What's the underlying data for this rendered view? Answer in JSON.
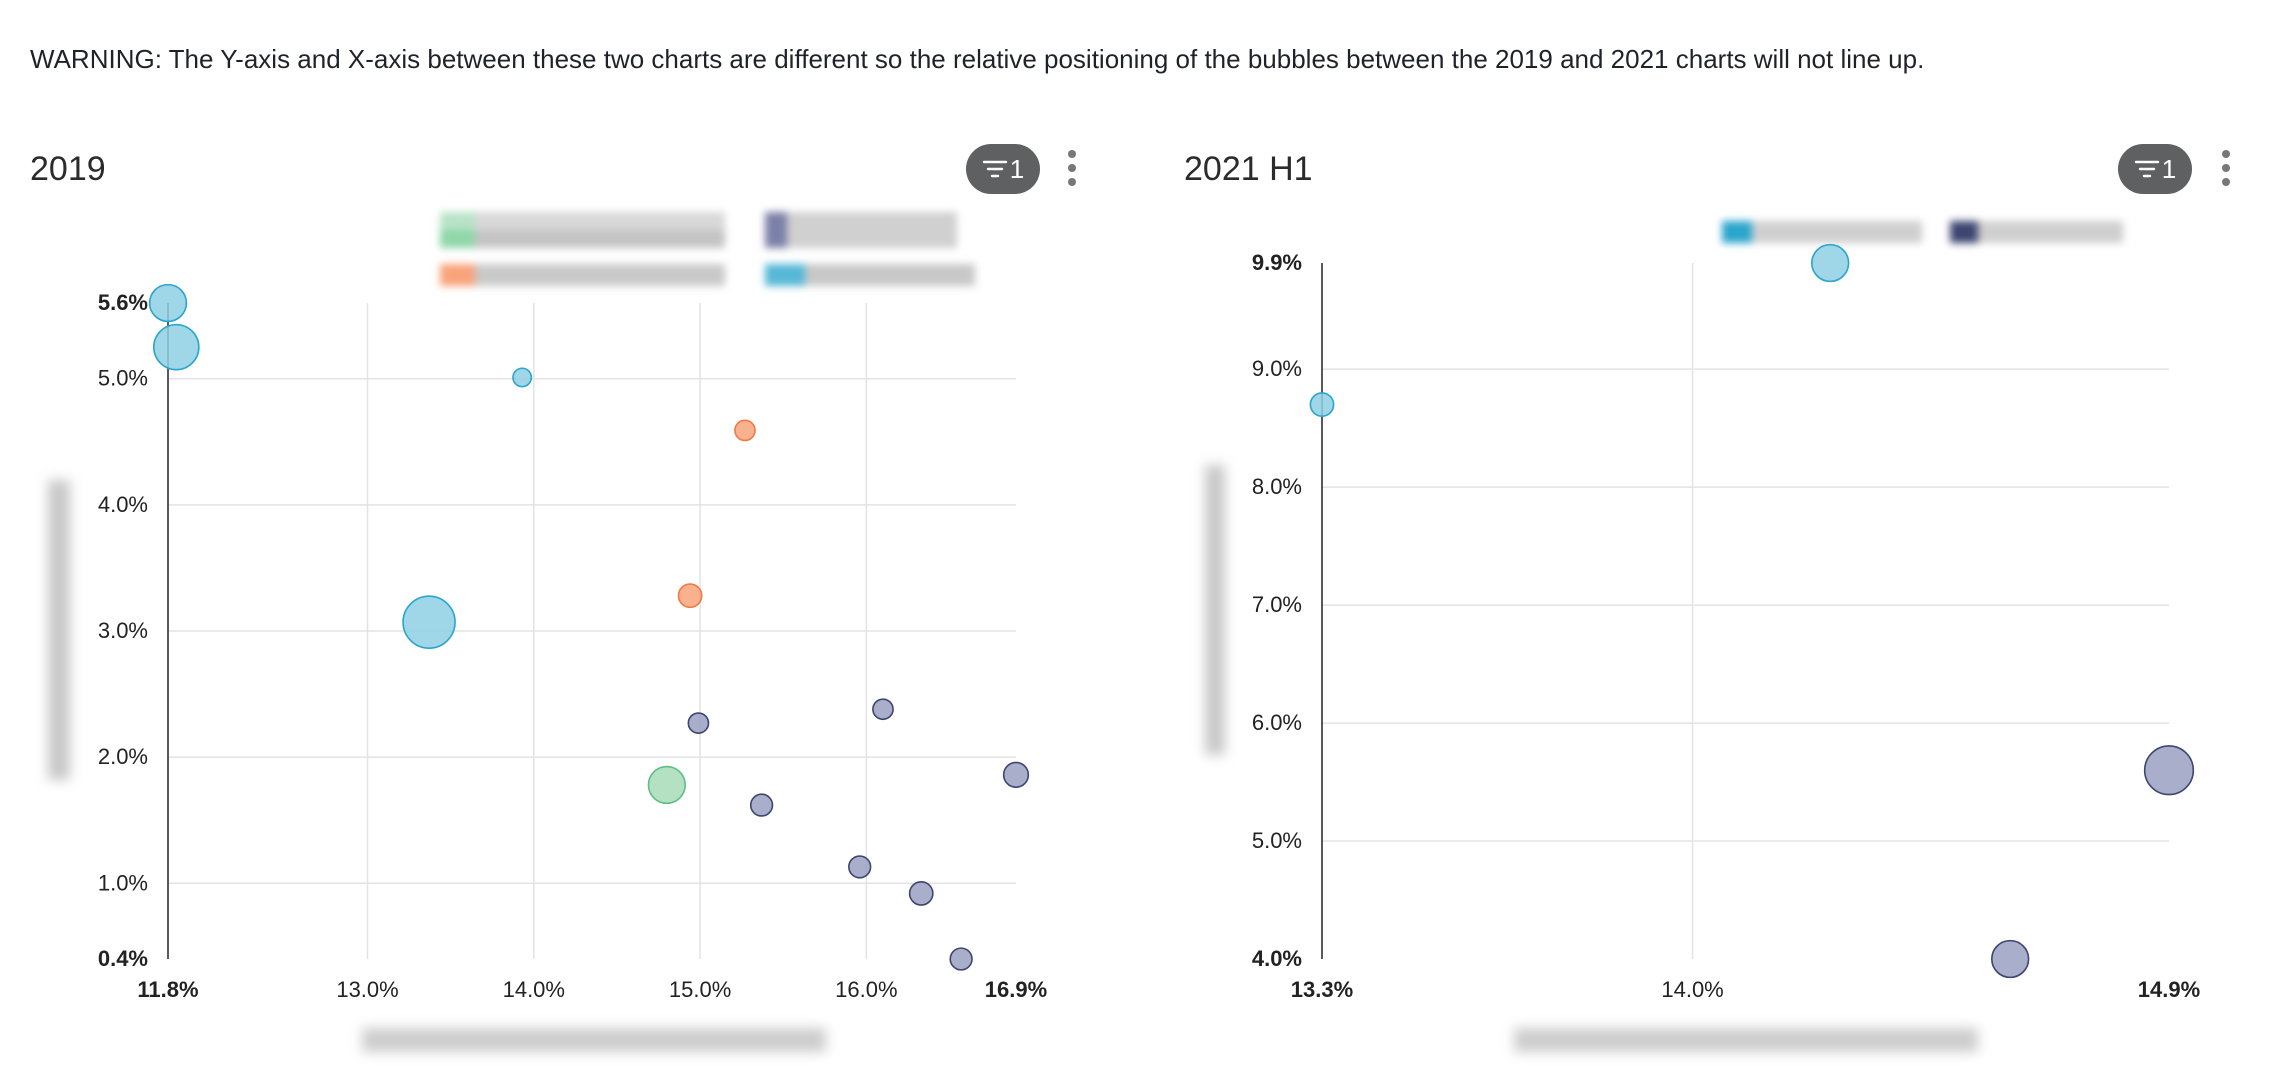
{
  "warning": "WARNING: The Y-axis and X-axis between these two charts are different so the relative positioning of the bubbles between the 2019 and 2021 charts will not line up.",
  "panels": [
    {
      "title": "2019",
      "filter_count": "1"
    },
    {
      "title": "2021 H1",
      "filter_count": "1"
    }
  ],
  "icons": {
    "filter": "filter-icon",
    "menu": "more-vertical-icon"
  },
  "colors": {
    "light_blue": "#8ecfe4",
    "light_blue_stroke": "#2aa5cc",
    "orange": "#f9a37a",
    "orange_stroke": "#ee7a45",
    "green": "#a8dcb8",
    "green_stroke": "#5cbf82",
    "navy": "#9aa0c2",
    "navy_stroke": "#3d4570"
  },
  "chart_data": [
    {
      "type": "scatter",
      "title": "2019",
      "xlim": [
        11.8,
        16.9
      ],
      "ylim": [
        0.4,
        5.6
      ],
      "x_ticks": [
        "11.8%",
        "13.0%",
        "14.0%",
        "15.0%",
        "16.0%",
        "16.9%"
      ],
      "x_tick_values": [
        11.8,
        13.0,
        14.0,
        15.0,
        16.0,
        16.9
      ],
      "y_ticks": [
        "0.4%",
        "1.0%",
        "2.0%",
        "3.0%",
        "4.0%",
        "5.0%",
        "5.6%"
      ],
      "y_tick_values": [
        0.4,
        1.0,
        2.0,
        3.0,
        4.0,
        5.0,
        5.6
      ],
      "grid": true,
      "legend_position": "top",
      "points": [
        {
          "x": 11.8,
          "y": 5.6,
          "size": 2,
          "color": "light_blue"
        },
        {
          "x": 11.85,
          "y": 5.25,
          "size": 3,
          "color": "light_blue"
        },
        {
          "x": 13.37,
          "y": 3.07,
          "size": 4,
          "color": "light_blue"
        },
        {
          "x": 13.93,
          "y": 5.01,
          "size": 0.5,
          "color": "light_blue"
        },
        {
          "x": 15.27,
          "y": 4.59,
          "size": 0.6,
          "color": "orange"
        },
        {
          "x": 14.94,
          "y": 3.28,
          "size": 0.8,
          "color": "orange"
        },
        {
          "x": 14.8,
          "y": 1.78,
          "size": 2,
          "color": "green"
        },
        {
          "x": 14.99,
          "y": 2.27,
          "size": 0.6,
          "color": "navy"
        },
        {
          "x": 15.37,
          "y": 1.62,
          "size": 0.7,
          "color": "navy"
        },
        {
          "x": 16.1,
          "y": 2.38,
          "size": 0.6,
          "color": "navy"
        },
        {
          "x": 16.9,
          "y": 1.86,
          "size": 0.9,
          "color": "navy"
        },
        {
          "x": 15.96,
          "y": 1.13,
          "size": 0.7,
          "color": "navy"
        },
        {
          "x": 16.33,
          "y": 0.92,
          "size": 0.8,
          "color": "navy"
        },
        {
          "x": 16.57,
          "y": 0.4,
          "size": 0.7,
          "color": "navy"
        }
      ]
    },
    {
      "type": "scatter",
      "title": "2021 H1",
      "xlim": [
        13.3,
        14.9
      ],
      "ylim": [
        4.0,
        9.9
      ],
      "x_ticks": [
        "13.3%",
        "14.0%",
        "14.9%"
      ],
      "x_tick_values": [
        13.3,
        14.0,
        14.9
      ],
      "y_ticks": [
        "4.0%",
        "5.0%",
        "6.0%",
        "7.0%",
        "8.0%",
        "9.0%",
        "9.9%"
      ],
      "y_tick_values": [
        4.0,
        5.0,
        6.0,
        7.0,
        8.0,
        9.0,
        9.9
      ],
      "grid": true,
      "legend_position": "top",
      "points": [
        {
          "x": 13.3,
          "y": 8.7,
          "size": 0.8,
          "color": "light_blue"
        },
        {
          "x": 14.26,
          "y": 9.9,
          "size": 2,
          "color": "light_blue"
        },
        {
          "x": 14.9,
          "y": 5.6,
          "size": 3.5,
          "color": "navy"
        },
        {
          "x": 14.6,
          "y": 4.0,
          "size": 2,
          "color": "navy"
        }
      ]
    }
  ]
}
